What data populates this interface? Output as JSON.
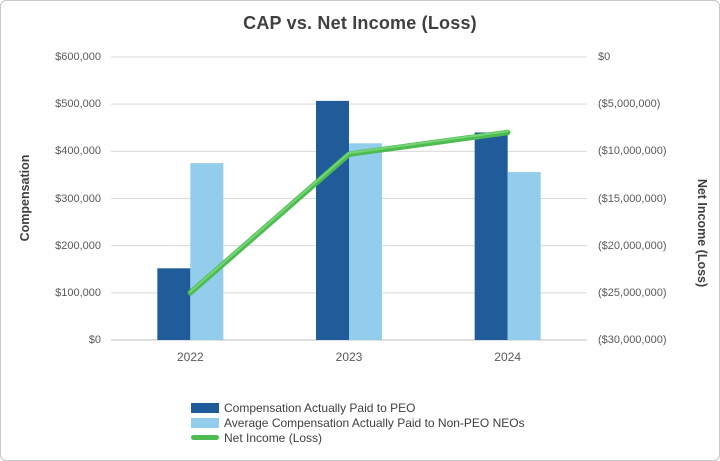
{
  "frame": {
    "background": "#ffffff",
    "border_color": "#c8c8c8"
  },
  "chart_data": {
    "type": "bar",
    "subtype": "combo bar+line, dual axis",
    "title": "CAP vs. Net Income (Loss)",
    "categories": [
      "2022",
      "2023",
      "2024"
    ],
    "series": [
      {
        "name": "Compensation Actually Paid to PEO",
        "type": "bar",
        "axis": "left",
        "color": "#1F5C99",
        "values": [
          152000,
          507000,
          440000
        ]
      },
      {
        "name": "Average Compensation Actually Paid to Non-PEO NEOs",
        "type": "bar",
        "axis": "left",
        "color": "#92CDEB",
        "values": [
          375000,
          417000,
          356000
        ]
      },
      {
        "name": "Net Income (Loss)",
        "type": "line",
        "axis": "right",
        "color": "#4CBC50",
        "highlight_color": "#7ED87E",
        "values": [
          -25000000,
          -10300000,
          -8000000
        ]
      }
    ],
    "left_axis": {
      "title": "Compensation",
      "min": 0,
      "max": 600000,
      "tick_labels": [
        "$600,000",
        "$500,000",
        "$400,000",
        "$300,000",
        "$200,000",
        "$100,000",
        "$0"
      ]
    },
    "right_axis": {
      "title": "Net Income (Loss)",
      "min": -30000000,
      "max": 0,
      "tick_labels": [
        "$0",
        "($5,000,000)",
        "($10,000,000)",
        "($15,000,000)",
        "($20,000,000)",
        "($25,000,000)",
        "($30,000,000)"
      ]
    },
    "grid": true,
    "gridline_color": "#d9d9d9",
    "baseline_color": "#bfbfbf",
    "legend_position": "bottom"
  }
}
